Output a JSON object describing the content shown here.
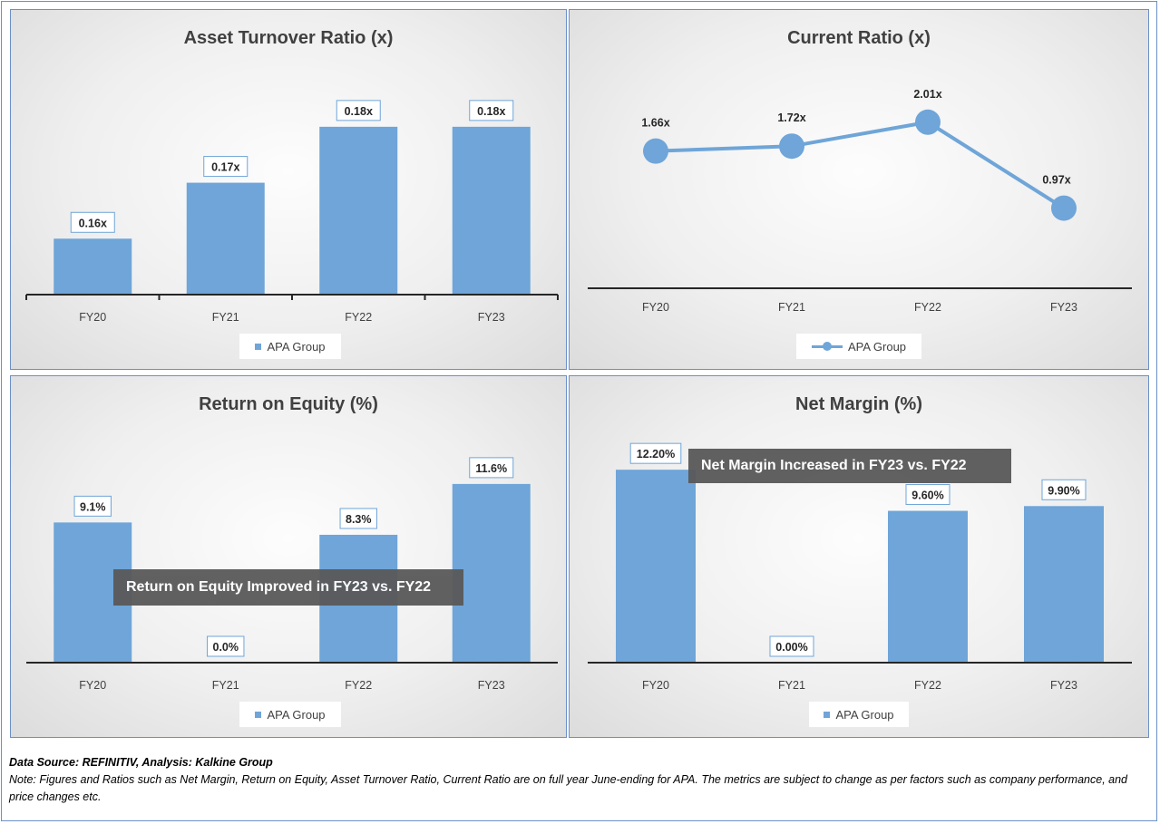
{
  "chart_data": [
    {
      "id": "asset",
      "type": "bar",
      "title": "Asset Turnover Ratio (x)",
      "categories": [
        "FY20",
        "FY21",
        "FY22",
        "FY23"
      ],
      "series": [
        {
          "name": "APA Group",
          "values": [
            0.16,
            0.17,
            0.18,
            0.18
          ]
        }
      ],
      "data_labels": [
        "0.16x",
        "0.17x",
        "0.18x",
        "0.18x"
      ],
      "ylim": [
        0.15,
        0.185
      ],
      "grid": false,
      "legend": "bottom"
    },
    {
      "id": "current",
      "type": "line",
      "title": "Current Ratio (x)",
      "categories": [
        "FY20",
        "FY21",
        "FY22",
        "FY23"
      ],
      "series": [
        {
          "name": "APA Group",
          "values": [
            1.66,
            1.72,
            2.01,
            0.97
          ]
        }
      ],
      "data_labels": [
        "1.66x",
        "1.72x",
        "2.01x",
        "0.97x"
      ],
      "ylim": [
        0,
        2.6
      ],
      "grid": false,
      "legend": "bottom"
    },
    {
      "id": "roe",
      "type": "bar",
      "title": "Return on Equity (%)",
      "categories": [
        "FY20",
        "FY21",
        "FY22",
        "FY23"
      ],
      "series": [
        {
          "name": "APA Group",
          "values": [
            9.1,
            0.0,
            8.3,
            11.6
          ]
        }
      ],
      "data_labels": [
        "9.1%",
        "0.0%",
        "8.3%",
        "11.6%"
      ],
      "ylim": [
        0,
        13.3
      ],
      "grid": false,
      "legend": "bottom",
      "annotation": "Return on Equity Improved in FY23 vs. FY22"
    },
    {
      "id": "netmargin",
      "type": "bar",
      "title": "Net Margin (%)",
      "categories": [
        "FY20",
        "FY21",
        "FY22",
        "FY23"
      ],
      "series": [
        {
          "name": "APA Group",
          "values": [
            12.2,
            0.0,
            9.6,
            9.9
          ]
        }
      ],
      "data_labels": [
        "12.20%",
        "0.00%",
        "9.60%",
        "9.90%"
      ],
      "ylim": [
        0,
        13.7
      ],
      "grid": false,
      "legend": "bottom",
      "annotation": "Net Margin Increased in FY23 vs. FY22"
    }
  ],
  "footer": {
    "source": "Data Source: REFINITIV, Analysis: Kalkine Group",
    "note": "Note: Figures and Ratios such as Net Margin, Return on Equity, Asset Turnover Ratio, Current Ratio are on full year June-ending for APA. The metrics are subject to change as per factors such as company performance, and price changes etc."
  },
  "colors": {
    "bar": "#6fa5d8",
    "axis": "#262626",
    "text": "#404040",
    "callout": "#595959"
  }
}
